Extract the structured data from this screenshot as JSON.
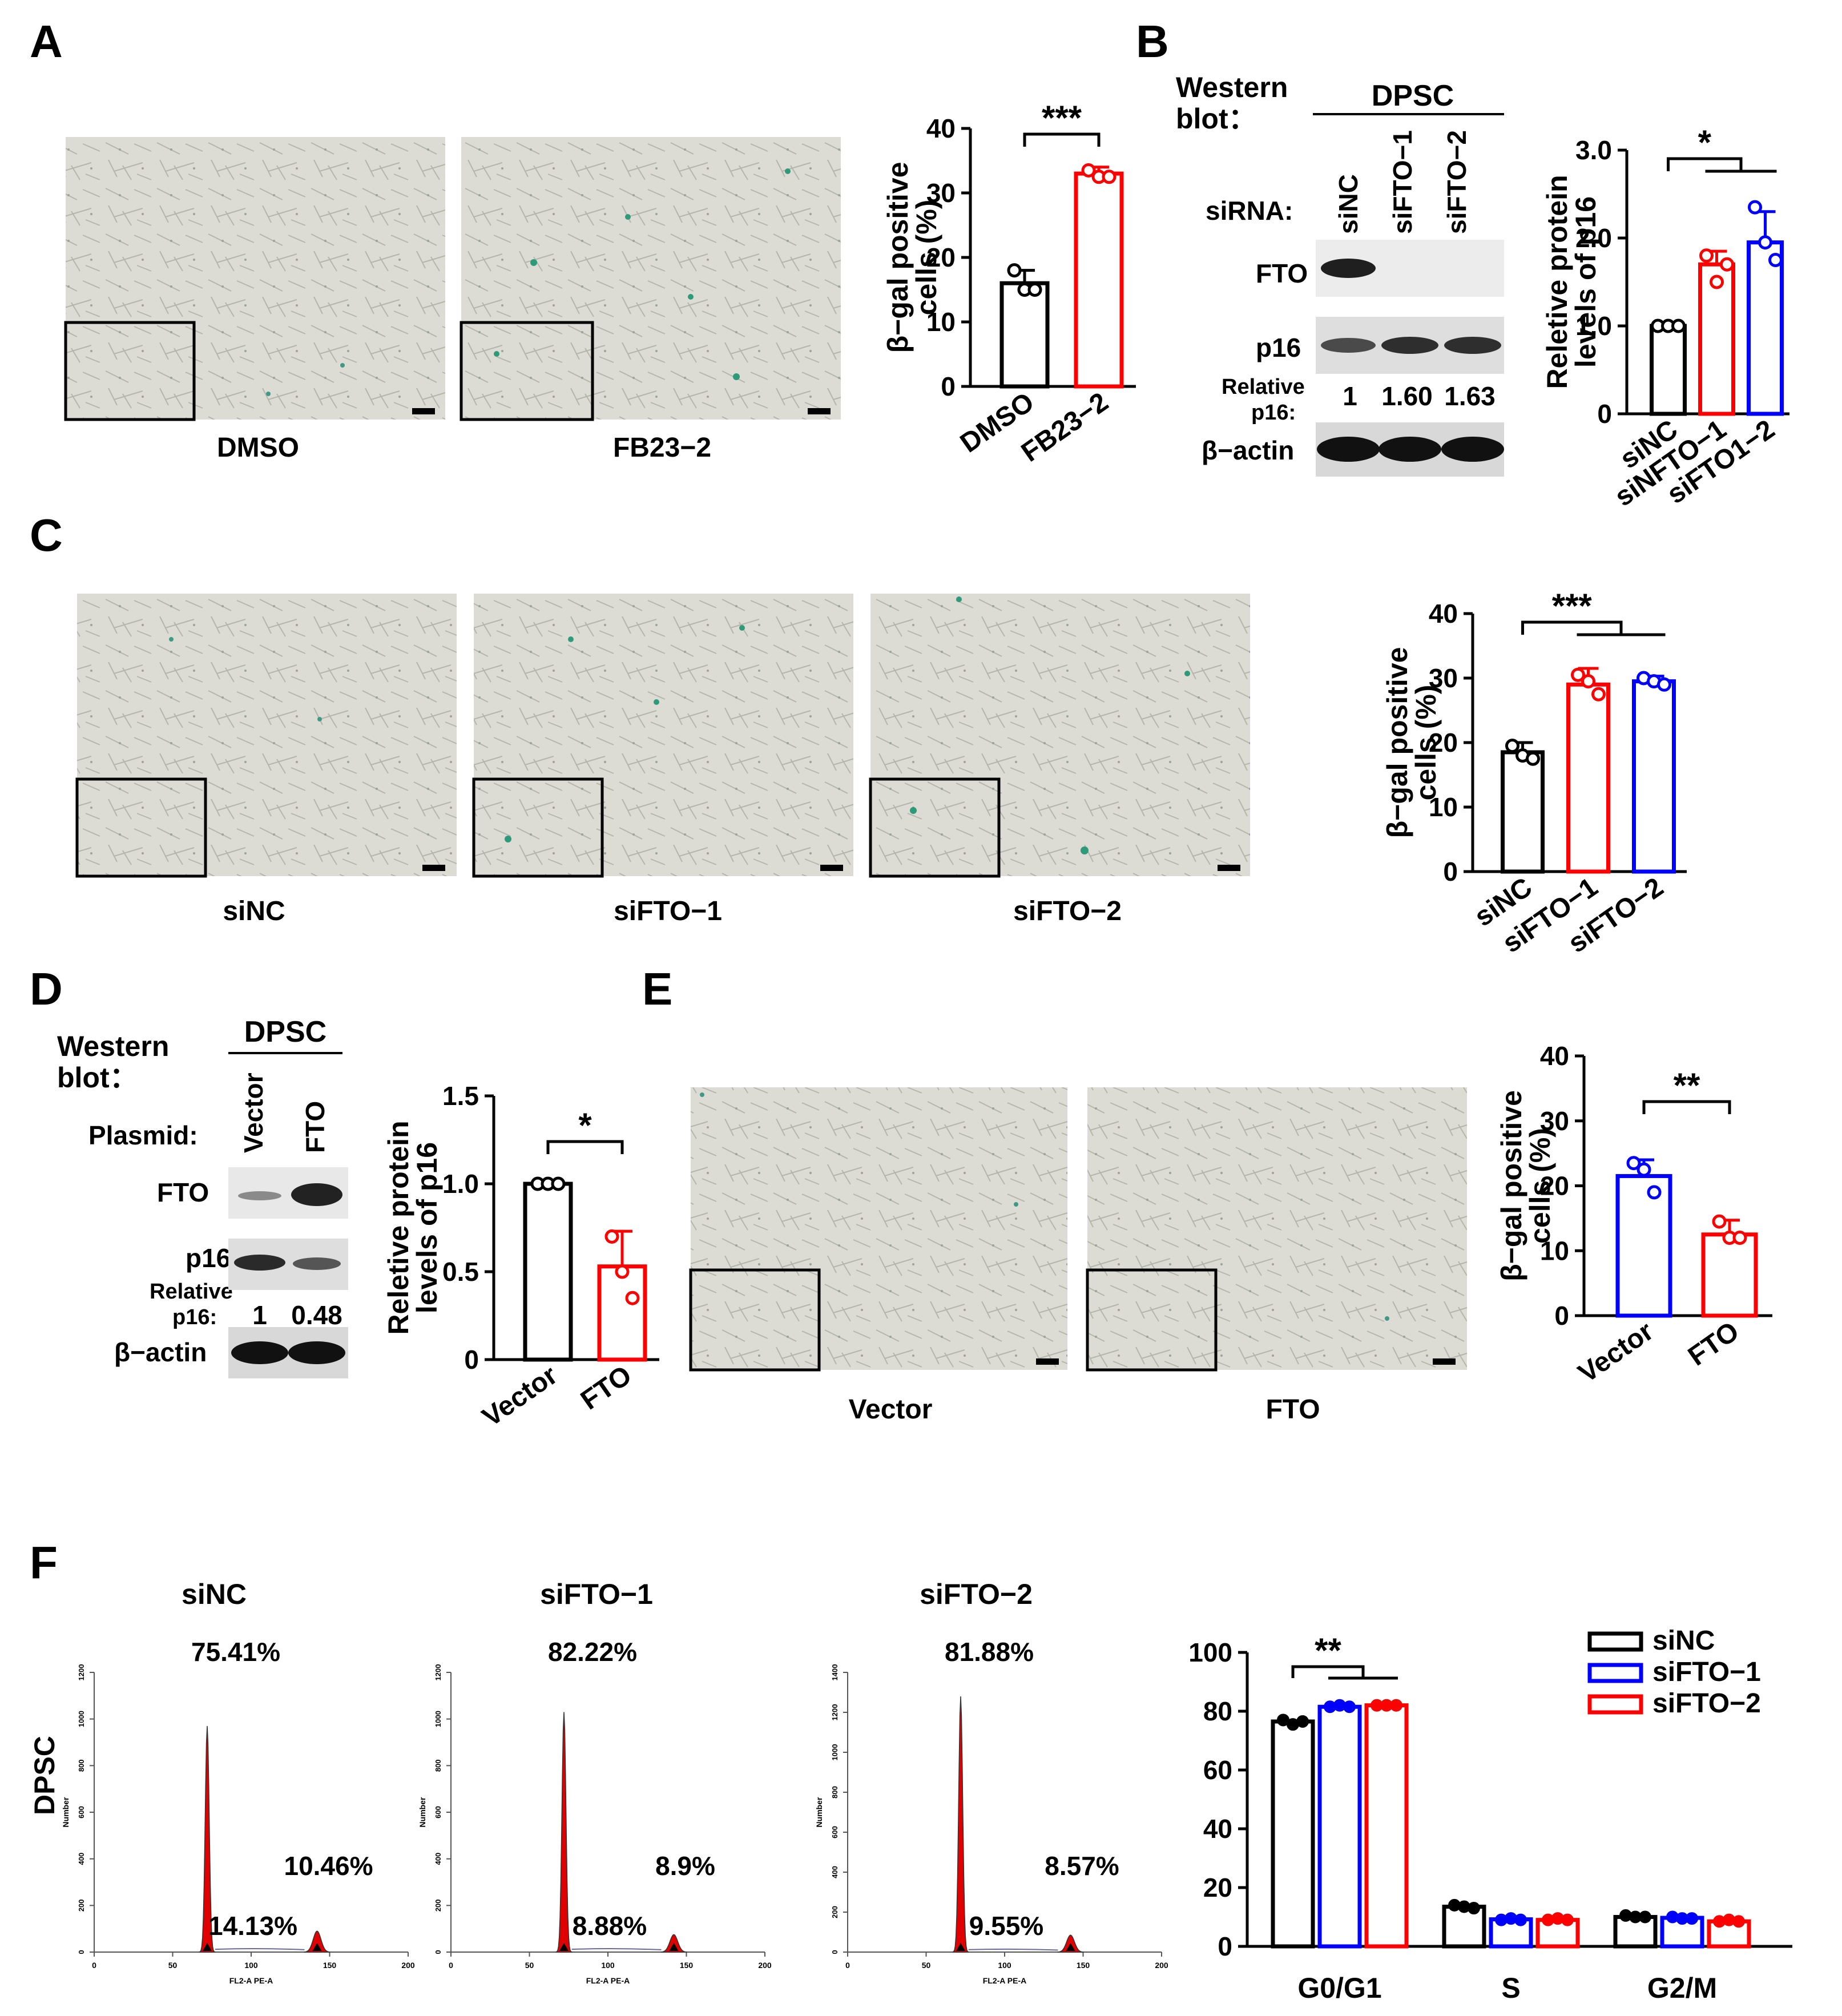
{
  "panels": {
    "A": {
      "letter": "A",
      "images": [
        {
          "label": "DMSO"
        },
        {
          "label": "FB23−2"
        }
      ],
      "chart": {
        "type": "bar",
        "categories": [
          "DMSO",
          "FB23−2"
        ],
        "values": [
          16,
          33
        ],
        "errors": [
          2,
          1
        ],
        "points": [
          [
            18,
            15,
            15
          ],
          [
            33.5,
            32.5,
            32.5
          ]
        ],
        "colors": [
          "#000000",
          "#ff0000"
        ],
        "ylabel_line1": "β−gal positive",
        "ylabel_line2": "cells (%)",
        "ylim": [
          0,
          40
        ],
        "yticks": [
          "0",
          "10",
          "20",
          "30",
          "40"
        ],
        "significance": "***"
      }
    },
    "B": {
      "letter": "B",
      "blot": {
        "header_line1": "Western",
        "header_line2": "blot：",
        "cell_line": "DPSC",
        "row_label": "siRNA:",
        "lanes": [
          "siNC",
          "siFTO−1",
          "siFTO−2"
        ],
        "bands": [
          "FTO",
          "p16",
          "β−actin"
        ],
        "relative_label_line1": "Relative",
        "relative_label_line2": "p16:",
        "relative_values": [
          "1",
          "1.60",
          "1.63"
        ]
      },
      "chart": {
        "type": "bar",
        "categories": [
          "siNC",
          "siNFTO−1",
          "siFTO1−2"
        ],
        "values": [
          1.0,
          1.7,
          1.95
        ],
        "errors": [
          0.0,
          0.15,
          0.35
        ],
        "points": [
          [
            1,
            1,
            1
          ],
          [
            1.8,
            1.5,
            1.7
          ],
          [
            2.35,
            1.95,
            1.75
          ]
        ],
        "colors": [
          "#000000",
          "#ff0000",
          "#0000ff"
        ],
        "ylabel_line1": "Reletive protein",
        "ylabel_line2": "levels of p16",
        "ylim": [
          0,
          3.0
        ],
        "yticks": [
          "0",
          "1.0",
          "2.0",
          "3.0"
        ],
        "significance": "*"
      }
    },
    "C": {
      "letter": "C",
      "images": [
        {
          "label": "siNC"
        },
        {
          "label": "siFTO−1"
        },
        {
          "label": "siFTO−2"
        }
      ],
      "chart": {
        "type": "bar",
        "categories": [
          "siNC",
          "siFTO−1",
          "siFTO−2"
        ],
        "values": [
          18.5,
          29,
          29.5
        ],
        "errors": [
          1.5,
          2.5,
          0.8
        ],
        "points": [
          [
            19.5,
            18,
            17.5
          ],
          [
            30.5,
            29.5,
            27.5
          ],
          [
            30,
            29.5,
            29
          ]
        ],
        "colors": [
          "#000000",
          "#ff0000",
          "#0000ff"
        ],
        "ylabel_line1": "β−gal positive",
        "ylabel_line2": "cells (%)",
        "ylim": [
          0,
          40
        ],
        "yticks": [
          "0",
          "10",
          "20",
          "30",
          "40"
        ],
        "significance": "***"
      }
    },
    "D": {
      "letter": "D",
      "blot": {
        "header_line1": "Western",
        "header_line2": "blot：",
        "cell_line": "DPSC",
        "row_label": "Plasmid:",
        "lanes": [
          "Vector",
          "FTO"
        ],
        "bands": [
          "FTO",
          "p16",
          "β−actin"
        ],
        "relative_label_line1": "Relative",
        "relative_label_line2": "p16:",
        "relative_values": [
          "1",
          "0.48"
        ]
      },
      "chart": {
        "type": "bar",
        "categories": [
          "Vector",
          "FTO"
        ],
        "values": [
          1.0,
          0.53
        ],
        "errors": [
          0.0,
          0.2
        ],
        "points": [
          [
            1,
            1,
            1
          ],
          [
            0.7,
            0.5,
            0.35
          ]
        ],
        "colors": [
          "#000000",
          "#ff0000"
        ],
        "ylabel_line1": "Reletive protein",
        "ylabel_line2": "levels of p16",
        "ylim": [
          0,
          1.5
        ],
        "yticks": [
          "0",
          "0.5",
          "1.0",
          "1.5"
        ],
        "significance": "*"
      }
    },
    "E": {
      "letter": "E",
      "images": [
        {
          "label": "Vector"
        },
        {
          "label": "FTO"
        }
      ],
      "chart": {
        "type": "bar",
        "categories": [
          "Vector",
          "FTO"
        ],
        "values": [
          21.5,
          12.5
        ],
        "errors": [
          2.5,
          2.2
        ],
        "points": [
          [
            23.5,
            22.5,
            19
          ],
          [
            14.5,
            12,
            12
          ]
        ],
        "colors": [
          "#0000ff",
          "#ff0000"
        ],
        "ylabel_line1": "β−gal positive",
        "ylabel_line2": "cells (%)",
        "ylim": [
          0,
          40
        ],
        "yticks": [
          "0",
          "10",
          "20",
          "30",
          "40"
        ],
        "significance": "**"
      }
    },
    "F": {
      "letter": "F",
      "row_label": "DPSC",
      "histograms": [
        {
          "title": "siNC",
          "g1": "75.41%",
          "s": "14.13%",
          "g2": "10.46%",
          "yticks": [
            "0",
            "200",
            "400",
            "600",
            "800",
            "1000",
            "1200"
          ],
          "ymax": 1200,
          "peak": 970,
          "peak2": 90
        },
        {
          "title": "siFTO−1",
          "g1": "82.22%",
          "s": "8.88%",
          "g2": "8.9%",
          "yticks": [
            "0",
            "200",
            "400",
            "600",
            "800",
            "1000",
            "1200"
          ],
          "ymax": 1200,
          "peak": 1030,
          "peak2": 75
        },
        {
          "title": "siFTO−2",
          "g1": "81.88%",
          "s": "9.55%",
          "g2": "8.57%",
          "yticks": [
            "0",
            "200",
            "400",
            "600",
            "800",
            "1000",
            "1200",
            "1400"
          ],
          "ymax": 1400,
          "peak": 1280,
          "peak2": 85
        }
      ],
      "hist_xticks": [
        "0",
        "50",
        "100",
        "150",
        "200"
      ],
      "hist_xlabel": "FL2-A PE-A",
      "hist_ylabel": "Number",
      "chart": {
        "type": "bar",
        "categories": [
          "G0/G1",
          "S",
          "G2/M"
        ],
        "series": [
          {
            "name": "siNC",
            "color": "#000000",
            "values": [
              76.5,
              13.5,
              10
            ],
            "points": [
              [
                77,
                75.5,
                76.5
              ],
              [
                14,
                13.5,
                13
              ],
              [
                10.5,
                10,
                10
              ]
            ]
          },
          {
            "name": "siFTO−1",
            "color": "#0000ff",
            "values": [
              81.5,
              9.2,
              9.7
            ],
            "points": [
              [
                81.5,
                82,
                81.5
              ],
              [
                9,
                9.5,
                9
              ],
              [
                10,
                9.5,
                9.5
              ]
            ]
          },
          {
            "name": "siFTO−2",
            "color": "#ff0000",
            "values": [
              82,
              9,
              8.5
            ],
            "points": [
              [
                82,
                82,
                82
              ],
              [
                9,
                9.5,
                9
              ],
              [
                8.5,
                9,
                8.5
              ]
            ]
          }
        ],
        "ylim": [
          0,
          100
        ],
        "yticks": [
          "0",
          "20",
          "40",
          "60",
          "80",
          "100"
        ],
        "significance": "**"
      }
    }
  }
}
